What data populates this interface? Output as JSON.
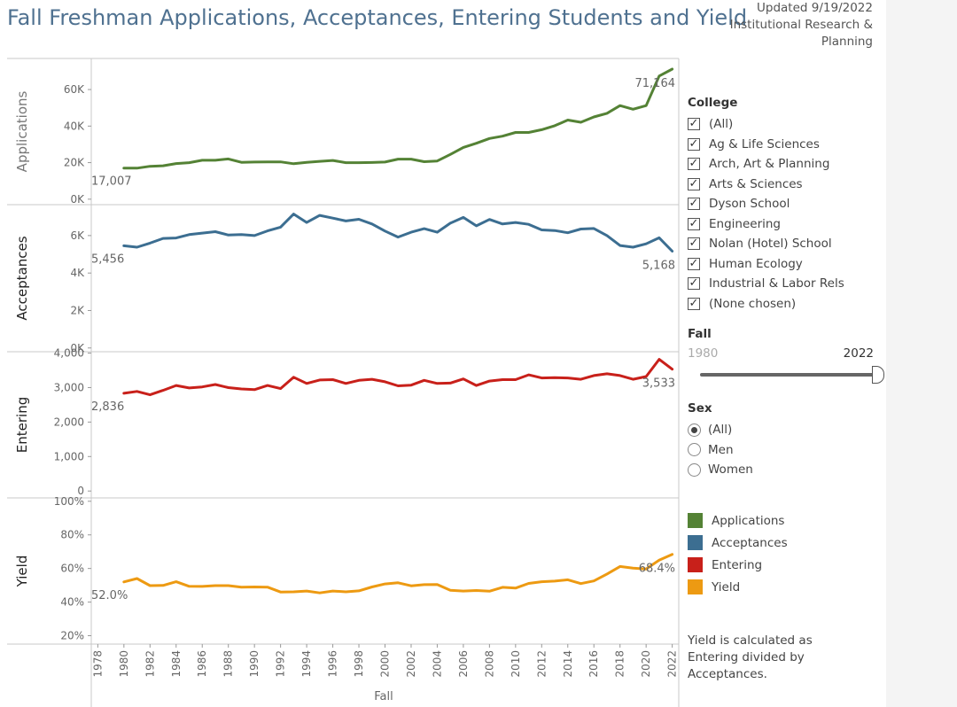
{
  "title": "Fall Freshman Applications, Acceptances, Entering Students and Yield",
  "updated": [
    "Updated 9/19/2022",
    "Institutional Research &",
    "Planning"
  ],
  "filters": {
    "college_title": "College",
    "college_items": [
      "(All)",
      "Ag & Life Sciences",
      "Arch, Art & Planning",
      "Arts & Sciences",
      "Dyson School",
      "Engineering",
      "Nolan (Hotel) School",
      "Human Ecology",
      "Industrial & Labor Rels",
      "(None chosen)"
    ],
    "checkmark": "✓",
    "fall_title": "Fall",
    "fall_min": "1980",
    "fall_max": "2022",
    "sex_title": "Sex",
    "sex_options": [
      "(All)",
      "Men",
      "Women"
    ],
    "sex_selected": "(All)"
  },
  "legend": [
    {
      "label": "Applications",
      "color": "#548235"
    },
    {
      "label": "Acceptances",
      "color": "#3c6e91"
    },
    {
      "label": "Entering",
      "color": "#c8201a"
    },
    {
      "label": "Yield",
      "color": "#ed9a12"
    }
  ],
  "note": "Yield is calculated as Entering divided by Acceptances.",
  "chart_data": {
    "type": "line",
    "xlabel": "Fall",
    "x_ticks": [
      "1978",
      "1980",
      "1982",
      "1984",
      "1986",
      "1988",
      "1990",
      "1992",
      "1994",
      "1996",
      "1998",
      "2000",
      "2002",
      "2004",
      "2006",
      "2008",
      "2010",
      "2012",
      "2014",
      "2016",
      "2018",
      "2020",
      "2022"
    ],
    "years": [
      1980,
      1981,
      1982,
      1983,
      1984,
      1985,
      1986,
      1987,
      1988,
      1989,
      1990,
      1991,
      1992,
      1993,
      1994,
      1995,
      1996,
      1997,
      1998,
      1999,
      2000,
      2001,
      2002,
      2003,
      2004,
      2005,
      2006,
      2007,
      2008,
      2009,
      2010,
      2011,
      2012,
      2013,
      2014,
      2015,
      2016,
      2017,
      2018,
      2019,
      2020,
      2021,
      2022
    ],
    "xlim": [
      1977.5,
      2022.5
    ],
    "series": [
      {
        "name": "Applications",
        "ylabel": "Applications",
        "color": "#548235",
        "ylim": [
          -3000,
          77000
        ],
        "yticks": [
          0,
          20000,
          40000,
          60000
        ],
        "ytick_labels": [
          "0K",
          "20K",
          "40K",
          "60K"
        ],
        "first_label": "17,007",
        "last_label": "71,164",
        "values": [
          17007,
          17000,
          18000,
          18300,
          19500,
          20000,
          21300,
          21300,
          22000,
          20200,
          20300,
          20400,
          20400,
          19400,
          20200,
          20700,
          21200,
          20000,
          20000,
          20100,
          20300,
          21900,
          21900,
          20500,
          20900,
          24500,
          28300,
          30600,
          33200,
          34500,
          36500,
          36500,
          38000,
          40200,
          43300,
          42100,
          45000,
          47000,
          51200,
          49200,
          51200,
          67400,
          71164
        ]
      },
      {
        "name": "Acceptances",
        "ylabel": "Acceptances",
        "color": "#3c6e91",
        "ylim": [
          -200,
          7650
        ],
        "yticks": [
          0,
          2000,
          4000,
          6000
        ],
        "ytick_labels": [
          "0K",
          "2K",
          "4K",
          "6K"
        ],
        "first_label": "5,456",
        "last_label": "5,168",
        "values": [
          5456,
          5380,
          5600,
          5850,
          5870,
          6050,
          6130,
          6210,
          6030,
          6050,
          6000,
          6250,
          6450,
          7150,
          6700,
          7080,
          6930,
          6780,
          6870,
          6620,
          6240,
          5920,
          6180,
          6370,
          6180,
          6660,
          6970,
          6520,
          6860,
          6620,
          6700,
          6600,
          6300,
          6270,
          6150,
          6350,
          6380,
          6000,
          5470,
          5380,
          5560,
          5880,
          5168
        ]
      },
      {
        "name": "Entering",
        "ylabel": "Entering",
        "color": "#c8201a",
        "ylim": [
          -200,
          4040
        ],
        "yticks": [
          0,
          1000,
          2000,
          3000,
          4000
        ],
        "ytick_labels": [
          "0",
          "1,000",
          "2,000",
          "3,000",
          "4,000"
        ],
        "first_label": "2,836",
        "last_label": "3,533",
        "values": [
          2836,
          2890,
          2790,
          2920,
          3060,
          2990,
          3020,
          3090,
          3000,
          2960,
          2940,
          3060,
          2970,
          3300,
          3120,
          3220,
          3230,
          3120,
          3210,
          3240,
          3170,
          3050,
          3070,
          3210,
          3120,
          3130,
          3250,
          3060,
          3190,
          3230,
          3230,
          3370,
          3280,
          3290,
          3280,
          3240,
          3350,
          3400,
          3350,
          3240,
          3320,
          3820,
          3533
        ]
      },
      {
        "name": "Yield",
        "ylabel": "Yield",
        "color": "#ed9a12",
        "ylim": [
          15,
          102
        ],
        "yticks": [
          20,
          40,
          60,
          80,
          100
        ],
        "ytick_labels": [
          "20%",
          "40%",
          "60%",
          "80%",
          "100%"
        ],
        "first_label": "52.0%",
        "last_label": "68.4%",
        "values": [
          52.0,
          54.0,
          49.8,
          49.9,
          52.1,
          49.4,
          49.3,
          49.8,
          49.8,
          48.9,
          49.0,
          48.9,
          46.0,
          46.1,
          46.6,
          45.5,
          46.6,
          46.1,
          46.7,
          49.0,
          50.8,
          51.5,
          49.7,
          50.4,
          50.5,
          47.0,
          46.6,
          46.9,
          46.5,
          48.8,
          48.3,
          51.1,
          52.1,
          52.5,
          53.3,
          51.0,
          52.6,
          56.7,
          61.2,
          60.2,
          59.7,
          65.0,
          68.4
        ]
      }
    ]
  }
}
